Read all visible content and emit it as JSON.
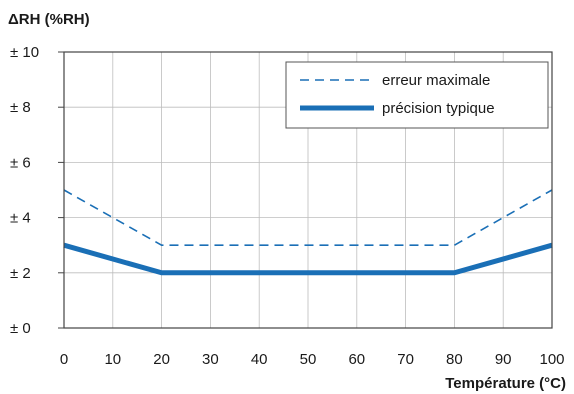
{
  "chart_data": {
    "type": "line",
    "ylabel": "ΔRH (%RH)",
    "xlabel": "Température (°C)",
    "xlim": [
      0,
      100
    ],
    "ylim": [
      0,
      10
    ],
    "x_ticks": [
      0,
      10,
      20,
      30,
      40,
      50,
      60,
      70,
      80,
      90,
      100
    ],
    "x_tick_labels": [
      "0",
      "10",
      "20",
      "30",
      "40",
      "50",
      "60",
      "70",
      "80",
      "90",
      "100"
    ],
    "y_ticks": [
      0,
      2,
      4,
      6,
      8,
      10
    ],
    "y_tick_labels": [
      "± 0",
      "± 2",
      "± 4",
      "± 6",
      "± 8",
      "± 10"
    ],
    "grid": true,
    "legend_position": "top-right",
    "series": [
      {
        "name": "erreur maximale",
        "style": "dashed",
        "color": "#1a6fb6",
        "x": [
          0,
          20,
          80,
          100
        ],
        "y": [
          5,
          3,
          3,
          5
        ]
      },
      {
        "name": "précision typique",
        "style": "solid-thick",
        "color": "#1a6fb6",
        "x": [
          0,
          20,
          80,
          100
        ],
        "y": [
          3,
          2,
          2,
          3
        ]
      }
    ]
  }
}
